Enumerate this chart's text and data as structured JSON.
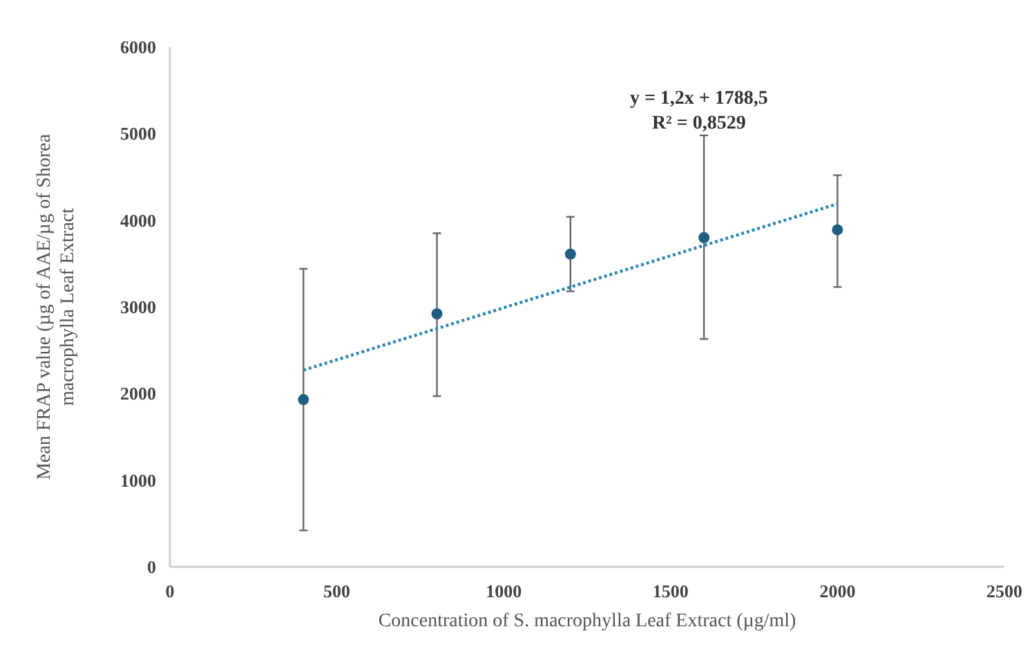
{
  "chart_data": {
    "type": "scatter",
    "xlabel": "Concentration of S. macrophylla Leaf Extract (µg/ml)",
    "ylabel": "Mean FRAP value (µg of AAE/µg of Shorea macrophylla  Leaf Extract",
    "annotations": [
      "y = 1,2x + 1788,5",
      "R² = 0,8529"
    ],
    "xlim": [
      0,
      2500
    ],
    "xticks": [
      0,
      500,
      1000,
      1500,
      2000,
      2500
    ],
    "ylim": [
      0,
      6000
    ],
    "yticks": [
      0,
      1000,
      2000,
      3000,
      4000,
      5000,
      6000
    ],
    "grid": false,
    "series": [
      {
        "marker": "circle",
        "color": "#1f5f82",
        "x": [
          400,
          800,
          1200,
          1600,
          2000
        ],
        "values": [
          1930,
          2920,
          3610,
          3800,
          3890
        ],
        "errors": [
          [
            420,
            3440
          ],
          [
            1970,
            3850
          ],
          [
            3180,
            4040
          ],
          [
            2630,
            4980
          ],
          [
            3230,
            4520
          ]
        ]
      },
      {
        "type": "line",
        "color": "#2e86b0",
        "line_style": "dotted",
        "x": [
          400,
          2000
        ],
        "values": [
          2270,
          4190
        ]
      }
    ]
  }
}
